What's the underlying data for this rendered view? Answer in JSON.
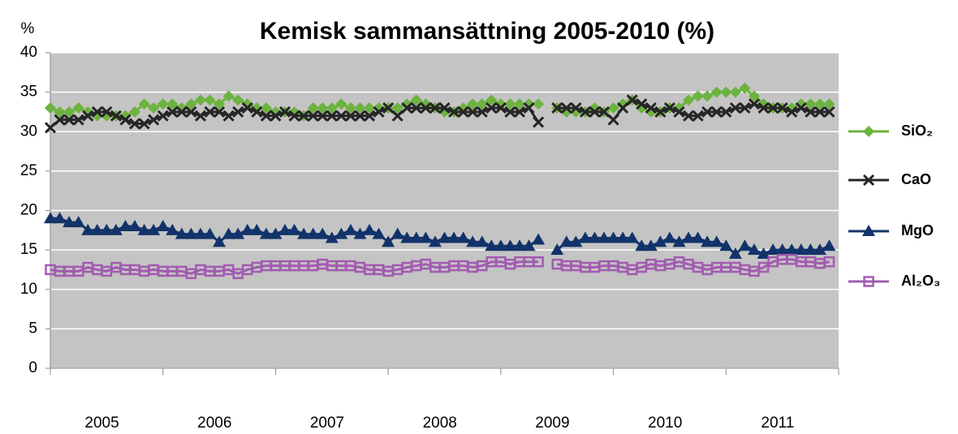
{
  "chart_data": {
    "type": "line",
    "title": "Kemisk sammansättning   2005-2010  (%)",
    "y_label": "%",
    "annotations": [
      "2005",
      "2006",
      "2007",
      "2008",
      "2009",
      "2010",
      "2011"
    ],
    "categories": [
      null,
      null,
      null,
      null,
      null,
      null,
      null,
      null,
      null,
      null,
      null,
      null,
      null,
      null,
      null,
      null,
      null,
      null,
      null,
      null,
      null,
      null,
      null,
      null,
      null,
      null,
      null,
      null,
      null,
      null,
      null,
      null,
      null,
      null,
      null,
      null,
      null,
      null,
      null,
      null,
      null,
      null,
      null,
      null,
      null,
      null,
      null,
      null,
      null,
      null,
      null,
      null,
      null,
      null,
      null,
      null,
      null,
      null,
      null,
      null,
      null,
      null,
      null,
      null,
      null,
      null,
      null,
      null,
      null,
      null,
      null,
      null,
      null,
      null,
      null,
      null,
      null,
      null,
      null,
      null,
      null,
      null,
      null,
      null
    ],
    "ylim": [
      0,
      40
    ],
    "yticks": [
      0,
      5,
      10,
      15,
      20,
      25,
      30,
      35,
      40
    ],
    "grid": true,
    "legend": "right",
    "series": [
      {
        "name": "SiO₂",
        "color": "#6db33f",
        "marker": "diamond",
        "values": [
          33,
          32.5,
          32.5,
          33,
          32.5,
          32,
          32,
          32,
          32,
          32.5,
          33.5,
          33,
          33.5,
          33.5,
          33,
          33.5,
          34,
          34,
          33.5,
          34.5,
          34,
          33.5,
          33,
          33,
          32.5,
          32.5,
          32.5,
          32,
          33,
          33,
          33,
          33.5,
          33,
          33,
          33,
          33,
          33,
          33,
          33.5,
          34,
          33.5,
          33,
          32.5,
          32.5,
          33,
          33.5,
          33.5,
          34,
          33.5,
          33.5,
          33.5,
          33.5,
          33.5,
          null,
          33,
          32.5,
          32.5,
          32.5,
          33,
          32.5,
          33,
          33.5,
          34,
          33,
          32.5,
          32.5,
          33,
          33,
          34,
          34.5,
          34.5,
          35,
          35,
          35,
          35.5,
          34.5,
          33.5,
          33,
          33,
          33,
          33.5,
          33.5,
          33.5,
          33.5
        ]
      },
      {
        "name": "CaO",
        "color": "#262626",
        "marker": "x",
        "values": [
          30.5,
          31.5,
          31.5,
          31.5,
          32,
          32.5,
          32.5,
          32,
          31.5,
          31,
          31,
          31.5,
          32,
          32.5,
          32.5,
          32.5,
          32,
          32.5,
          32.5,
          32,
          32.5,
          33,
          32.5,
          32,
          32,
          32.5,
          32,
          32,
          32,
          32,
          32,
          32,
          32,
          32,
          32,
          32.5,
          33,
          32,
          33,
          33,
          33,
          33,
          33,
          32.5,
          32.5,
          32.5,
          32.5,
          33,
          33,
          32.5,
          32.5,
          33,
          31.2,
          null,
          33,
          33,
          33,
          32.5,
          32.5,
          32.5,
          31.5,
          33,
          34,
          33.5,
          33,
          32.5,
          33,
          32.5,
          32,
          32,
          32.5,
          32.5,
          32.5,
          33,
          33,
          33.5,
          33,
          33,
          33,
          32.5,
          33,
          32.5,
          32.5,
          32.5
        ]
      },
      {
        "name": "MgO",
        "color": "#12336a",
        "marker": "triangle",
        "values": [
          19,
          19,
          18.5,
          18.5,
          17.5,
          17.5,
          17.5,
          17.5,
          18,
          18,
          17.5,
          17.5,
          18,
          17.5,
          17,
          17,
          17,
          17,
          16,
          17,
          17,
          17.5,
          17.5,
          17,
          17,
          17.5,
          17.5,
          17,
          17,
          17,
          16.5,
          17,
          17.5,
          17,
          17.5,
          17,
          16,
          17,
          16.5,
          16.5,
          16.5,
          16,
          16.5,
          16.5,
          16.5,
          16,
          16,
          15.5,
          15.5,
          15.5,
          15.5,
          15.5,
          16.3,
          null,
          15,
          16,
          16,
          16.5,
          16.5,
          16.5,
          16.5,
          16.5,
          16.5,
          15.5,
          15.5,
          16,
          16.5,
          16,
          16.5,
          16.5,
          16,
          16,
          15.5,
          14.5,
          15.5,
          15,
          14.5,
          15,
          15,
          15,
          15,
          15,
          15,
          15.5
        ]
      },
      {
        "name": "Al₂O₃",
        "color": "#a25bb0",
        "marker": "square",
        "values": [
          12.5,
          12.3,
          12.3,
          12.3,
          12.8,
          12.5,
          12.3,
          12.8,
          12.5,
          12.5,
          12.3,
          12.5,
          12.3,
          12.3,
          12.3,
          12,
          12.5,
          12.3,
          12.3,
          12.5,
          12,
          12.5,
          12.8,
          13,
          13,
          13,
          13,
          13,
          13,
          13.2,
          13,
          13,
          13,
          12.8,
          12.5,
          12.5,
          12.3,
          12.5,
          12.8,
          13,
          13.2,
          12.8,
          12.8,
          13,
          13,
          12.8,
          13,
          13.5,
          13.5,
          13.2,
          13.5,
          13.5,
          13.5,
          null,
          13.2,
          13,
          13,
          12.8,
          12.8,
          13,
          13,
          12.8,
          12.5,
          12.8,
          13.2,
          13,
          13.2,
          13.5,
          13.2,
          12.8,
          12.5,
          12.8,
          12.8,
          12.8,
          12.5,
          12.3,
          12.8,
          13.5,
          13.8,
          13.8,
          13.5,
          13.5,
          13.3,
          13.5
        ]
      }
    ]
  }
}
